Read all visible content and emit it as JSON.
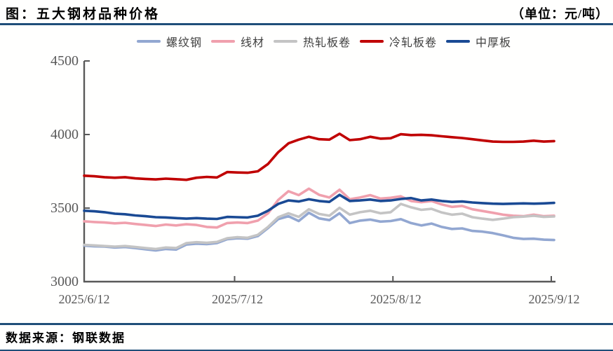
{
  "header": {
    "title": "图：五大钢材品种价格",
    "unit_label": "（单位：元/吨）"
  },
  "footer": {
    "source": "数据来源：钢联数据"
  },
  "colors": {
    "accent_rule": "#1F4E79",
    "axis": "#595959",
    "tick_text": "#595959"
  },
  "chart_data": {
    "type": "line",
    "title": "五大钢材品种价格",
    "unit": "元/吨",
    "grid": false,
    "legend_position": "top",
    "ylim": [
      3000,
      4500
    ],
    "y_ticks": [
      3000,
      3500,
      4000,
      4500
    ],
    "x_range": [
      0,
      92
    ],
    "x_tick_days": [
      0,
      30,
      61,
      92
    ],
    "x_tick_labels": [
      "2025/6/12",
      "2025/7/12",
      "2025/8/12",
      "2025/9/12"
    ],
    "x_days": [
      0,
      2,
      4,
      6,
      8,
      10,
      12,
      14,
      16,
      18,
      20,
      22,
      24,
      26,
      28,
      30,
      32,
      34,
      36,
      38,
      40,
      42,
      44,
      46,
      48,
      50,
      52,
      54,
      56,
      58,
      60,
      62,
      64,
      66,
      68,
      70,
      72,
      74,
      76,
      78,
      80,
      82,
      84,
      86,
      88,
      90,
      92
    ],
    "series": [
      {
        "id": "luowengang",
        "name": "螺纹钢",
        "color": "#92A7D1",
        "values": [
          3245,
          3240,
          3238,
          3232,
          3235,
          3228,
          3220,
          3212,
          3222,
          3218,
          3252,
          3258,
          3255,
          3262,
          3288,
          3295,
          3292,
          3310,
          3365,
          3425,
          3445,
          3412,
          3468,
          3430,
          3418,
          3465,
          3398,
          3415,
          3422,
          3408,
          3412,
          3425,
          3398,
          3382,
          3395,
          3372,
          3358,
          3362,
          3345,
          3340,
          3330,
          3315,
          3298,
          3290,
          3292,
          3285,
          3283
        ]
      },
      {
        "id": "xiancai",
        "name": "线材",
        "color": "#F0A0AD",
        "values": [
          3410,
          3405,
          3402,
          3396,
          3400,
          3392,
          3385,
          3378,
          3388,
          3382,
          3390,
          3385,
          3372,
          3368,
          3398,
          3402,
          3398,
          3415,
          3465,
          3555,
          3615,
          3588,
          3632,
          3590,
          3572,
          3625,
          3560,
          3572,
          3588,
          3565,
          3570,
          3580,
          3548,
          3540,
          3548,
          3525,
          3508,
          3515,
          3492,
          3480,
          3468,
          3455,
          3448,
          3445,
          3455,
          3445,
          3448
        ]
      },
      {
        "id": "rezhabanjuan",
        "name": "热轧板卷",
        "color": "#C4C4C4",
        "values": [
          3250,
          3246,
          3242,
          3238,
          3242,
          3235,
          3228,
          3222,
          3232,
          3228,
          3262,
          3268,
          3264,
          3270,
          3295,
          3302,
          3298,
          3318,
          3372,
          3438,
          3465,
          3440,
          3492,
          3460,
          3448,
          3502,
          3455,
          3472,
          3482,
          3465,
          3472,
          3528,
          3505,
          3488,
          3495,
          3470,
          3455,
          3462,
          3438,
          3428,
          3420,
          3428,
          3438,
          3442,
          3448,
          3440,
          3443
        ]
      },
      {
        "id": "lengzhabanjuan",
        "name": "冷轧板卷",
        "color": "#C00000",
        "values": [
          3720,
          3716,
          3710,
          3706,
          3710,
          3702,
          3698,
          3695,
          3700,
          3696,
          3692,
          3706,
          3712,
          3708,
          3745,
          3742,
          3740,
          3750,
          3800,
          3880,
          3940,
          3965,
          3985,
          3968,
          3965,
          4005,
          3962,
          3968,
          3985,
          3972,
          3975,
          4002,
          3996,
          3998,
          3995,
          3988,
          3982,
          3976,
          3968,
          3960,
          3952,
          3950,
          3950,
          3952,
          3958,
          3952,
          3955
        ]
      },
      {
        "id": "zhonghouban",
        "name": "中厚板",
        "color": "#1A4A94",
        "values": [
          3482,
          3478,
          3472,
          3462,
          3458,
          3450,
          3445,
          3438,
          3436,
          3432,
          3428,
          3432,
          3428,
          3426,
          3440,
          3438,
          3436,
          3448,
          3482,
          3528,
          3552,
          3545,
          3560,
          3548,
          3542,
          3590,
          3548,
          3552,
          3558,
          3548,
          3552,
          3562,
          3568,
          3552,
          3558,
          3548,
          3542,
          3545,
          3538,
          3534,
          3530,
          3528,
          3530,
          3532,
          3530,
          3532,
          3535
        ]
      }
    ]
  }
}
